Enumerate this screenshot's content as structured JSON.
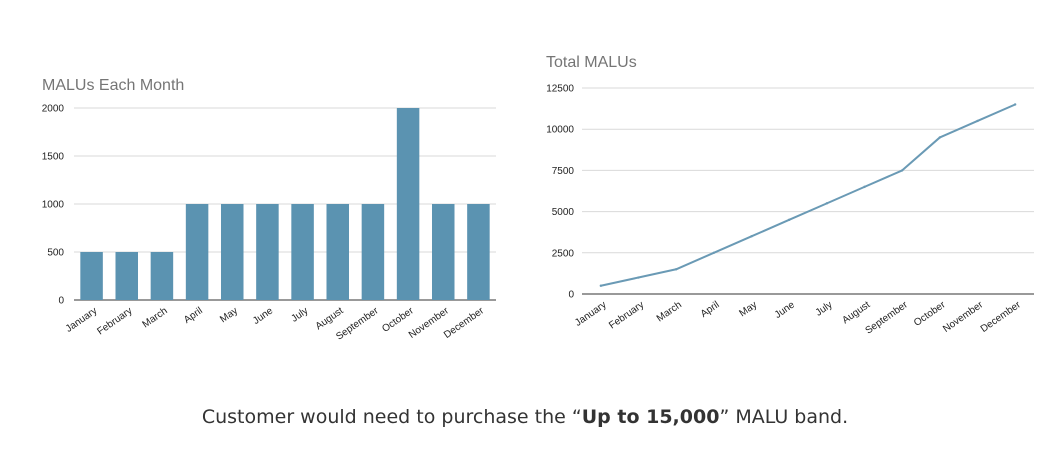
{
  "colors": {
    "bar": "#5b93b1",
    "line": "#6a9ab5",
    "grid": "#d9d9d9",
    "title": "#757575"
  },
  "caption": {
    "prefix": "Customer would need to purchase the “",
    "bold": "Up to 15,000",
    "suffix": "” MALU band."
  },
  "chart_data": [
    {
      "type": "bar",
      "title": "MALUs Each Month",
      "categories": [
        "January",
        "February",
        "March",
        "April",
        "May",
        "June",
        "July",
        "August",
        "September",
        "October",
        "November",
        "December"
      ],
      "values": [
        500,
        500,
        500,
        1000,
        1000,
        1000,
        1000,
        1000,
        1000,
        2000,
        1000,
        1000
      ],
      "yticks": [
        "0",
        "500",
        "1000",
        "1500",
        "2000"
      ],
      "ylim": [
        0,
        2000
      ],
      "grid": true,
      "xlabel": "",
      "ylabel": ""
    },
    {
      "type": "line",
      "title": "Total MALUs",
      "categories": [
        "January",
        "February",
        "March",
        "April",
        "May",
        "June",
        "July",
        "August",
        "September",
        "October",
        "November",
        "December"
      ],
      "values": [
        500,
        1000,
        1500,
        2500,
        3500,
        4500,
        5500,
        6500,
        7500,
        9500,
        10500,
        11500
      ],
      "yticks": [
        "0",
        "2500",
        "5000",
        "7500",
        "10000",
        "12500"
      ],
      "ylim": [
        0,
        12500
      ],
      "grid": true,
      "xlabel": "",
      "ylabel": ""
    }
  ]
}
